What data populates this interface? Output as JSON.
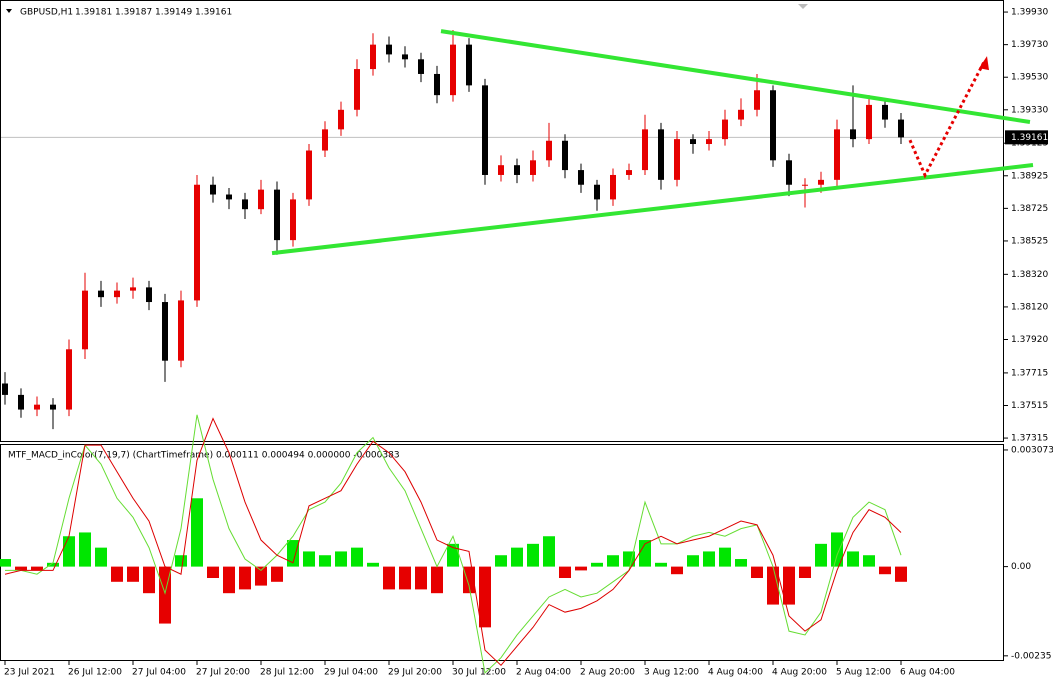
{
  "chart_data": [
    {
      "type": "candlestick",
      "symbol": "GBPUSD,H1",
      "quote": [
        1.39181,
        1.39187,
        1.39149,
        1.39161
      ],
      "last_price": 1.39161,
      "up_color": "#e60000",
      "down_color": "#000000",
      "categories": [
        "23 Jul 2021",
        null,
        null,
        null,
        "26 Jul 12:00",
        null,
        null,
        null,
        "27 Jul 04:00",
        null,
        null,
        null,
        "27 Jul 20:00",
        null,
        null,
        null,
        "28 Jul 12:00",
        null,
        null,
        null,
        "29 Jul 04:00",
        null,
        null,
        null,
        "29 Jul 20:00",
        null,
        null,
        null,
        "30 Jul 12:00",
        null,
        null,
        null,
        "2 Aug 04:00",
        null,
        null,
        null,
        "2 Aug 20:00",
        null,
        null,
        null,
        "3 Aug 12:00",
        null,
        null,
        null,
        "4 Aug 04:00",
        null,
        null,
        null,
        "4 Aug 20:00",
        null,
        null,
        null,
        "5 Aug 12:00",
        null,
        null,
        null,
        "6 Aug 04:00"
      ],
      "open": [
        1.3765,
        1.3758,
        1.3749,
        1.3752,
        1.3749,
        1.3786,
        1.3822,
        1.3818,
        1.3822,
        1.3824,
        1.3815,
        1.3779,
        1.3816,
        1.3887,
        1.3881,
        1.3878,
        1.3872,
        1.3884,
        1.3853,
        1.3878,
        1.3908,
        1.3921,
        1.3933,
        1.3958,
        1.3973,
        1.3967,
        1.3964,
        1.3955,
        1.3942,
        1.3973,
        1.3948,
        1.3893,
        1.3899,
        1.3893,
        1.3902,
        1.3914,
        1.3896,
        1.3887,
        1.3878,
        1.3893,
        1.3896,
        1.3921,
        1.389,
        1.3915,
        1.3912,
        1.3915,
        1.3927,
        1.3933,
        1.3945,
        1.3902,
        1.3887,
        1.3887,
        1.389,
        1.3921,
        1.3915,
        1.3936,
        1.3927
      ],
      "high": [
        1.3772,
        1.3762,
        1.3757,
        1.3756,
        1.3792,
        1.3833,
        1.3828,
        1.3827,
        1.383,
        1.3828,
        1.382,
        1.3822,
        1.3893,
        1.3892,
        1.3885,
        1.3882,
        1.389,
        1.3889,
        1.3882,
        1.3912,
        1.3926,
        1.3938,
        1.3964,
        1.398,
        1.3978,
        1.3972,
        1.3968,
        1.396,
        1.3982,
        1.3977,
        1.3952,
        1.3905,
        1.3903,
        1.3908,
        1.3925,
        1.3918,
        1.39,
        1.389,
        1.3897,
        1.39,
        1.393,
        1.3925,
        1.392,
        1.3918,
        1.392,
        1.3933,
        1.394,
        1.3955,
        1.3948,
        1.3906,
        1.3891,
        1.3895,
        1.3927,
        1.3948,
        1.3942,
        1.3939,
        1.3931
      ],
      "low": [
        1.3752,
        1.3744,
        1.3745,
        1.3737,
        1.3745,
        1.378,
        1.3812,
        1.3814,
        1.3817,
        1.381,
        1.3766,
        1.3775,
        1.3812,
        1.3876,
        1.3872,
        1.3866,
        1.3869,
        1.3844,
        1.3849,
        1.3874,
        1.3904,
        1.3917,
        1.3929,
        1.3954,
        1.3962,
        1.3959,
        1.395,
        1.3937,
        1.3938,
        1.3944,
        1.3887,
        1.3889,
        1.3888,
        1.3889,
        1.3898,
        1.3891,
        1.3882,
        1.3871,
        1.3874,
        1.389,
        1.3893,
        1.3884,
        1.3886,
        1.3906,
        1.3908,
        1.3911,
        1.3923,
        1.3929,
        1.3898,
        1.388,
        1.3873,
        1.3882,
        1.3885,
        1.391,
        1.3912,
        1.3922,
        1.3912
      ],
      "close": [
        1.3758,
        1.3749,
        1.3752,
        1.3749,
        1.3786,
        1.3822,
        1.3818,
        1.3822,
        1.3824,
        1.3815,
        1.3779,
        1.3816,
        1.3887,
        1.3881,
        1.3878,
        1.3872,
        1.3884,
        1.3853,
        1.3878,
        1.3908,
        1.3921,
        1.3933,
        1.3958,
        1.3973,
        1.3967,
        1.3964,
        1.3955,
        1.3942,
        1.3973,
        1.3948,
        1.3893,
        1.3899,
        1.3893,
        1.3902,
        1.3914,
        1.3896,
        1.3887,
        1.3878,
        1.3893,
        1.3896,
        1.3921,
        1.389,
        1.3915,
        1.3912,
        1.3915,
        1.3927,
        1.3933,
        1.3945,
        1.3902,
        1.3887,
        1.3887,
        1.389,
        1.3921,
        1.3915,
        1.3936,
        1.3927,
        1.39161
      ],
      "trendlines": [
        {
          "color": "#33e633",
          "x": [
            27.25,
            64.06
          ],
          "y": [
            1.39813,
            1.39255
          ]
        },
        {
          "color": "#33e633",
          "x": [
            16.69,
            64.25
          ],
          "y": [
            1.3845,
            1.38991
          ]
        }
      ],
      "projection": {
        "color": "#e60000",
        "x": [
          56.56,
          57.5,
          61.25
        ],
        "y": [
          1.39144,
          1.38929,
          1.39635
        ]
      },
      "ylim": [
        1.37297,
        1.40004
      ],
      "yticks": [
        {
          "value": 1.3993,
          "label": "1.39930"
        },
        {
          "value": 1.3973,
          "label": "1.39730"
        },
        {
          "value": 1.3953,
          "label": "1.39530"
        },
        {
          "value": 1.3933,
          "label": "1.39330"
        },
        1.39125,
        1.38925,
        1.38725,
        1.38525,
        {
          "value": 1.3832,
          "label": "1.38320"
        },
        {
          "value": 1.3812,
          "label": "1.38120"
        },
        {
          "value": 1.3792,
          "label": "1.37920"
        },
        1.37715,
        1.37515,
        1.37315
      ]
    },
    {
      "type": "macd",
      "title": "MTF_MACD_inColor(7,19,7) (ChartTimeframe) 0.000111 0.000494 0.000000 -0.000383",
      "up_color": "#00e600",
      "down_color": "#e60000",
      "histogram": [
        0.0002,
        -0.0001,
        -0.0001,
        0.0001,
        0.0008,
        0.0009,
        0.0005,
        -0.0004,
        -0.0004,
        -0.0007,
        -0.0015,
        0.0003,
        0.0018,
        -0.0003,
        -0.0007,
        -0.0006,
        -0.0005,
        -0.0004,
        0.0007,
        0.0004,
        0.0003,
        0.0004,
        0.0005,
        0.0001,
        -0.0006,
        -0.0006,
        -0.0006,
        -0.0007,
        0.0006,
        -0.0007,
        -0.0016,
        0.0003,
        0.0005,
        0.0006,
        0.0008,
        -0.0003,
        -0.0001,
        0.0001,
        0.0003,
        0.0004,
        0.0007,
        0.0001,
        -0.0002,
        0.0003,
        0.0004,
        0.0005,
        0.0002,
        -0.0003,
        -0.001,
        -0.001,
        -0.0003,
        0.0006,
        0.0009,
        0.0004,
        0.0003,
        -0.0002,
        -0.0004
      ],
      "series": [
        {
          "color": "#66dd33",
          "values": [
            -0.0001,
            -0.0001,
            -0.0002,
            0.0001,
            0.0018,
            0.0032,
            0.0027,
            0.0018,
            0.0013,
            0.0005,
            -0.0007,
            0.001,
            0.004,
            0.0023,
            0.001,
            0.0002,
            -0.0001,
            0.0003,
            0.0008,
            0.0015,
            0.0017,
            0.0022,
            0.003,
            0.0034,
            0.0026,
            0.002,
            0.001,
            0,
            0.0008,
            -0.0005,
            -0.0028,
            -0.0024,
            -0.0018,
            -0.0013,
            -0.0008,
            -0.0006,
            -0.0008,
            -0.0007,
            -0.0004,
            -0.0001,
            0.0017,
            0.0006,
            0.0006,
            0.0008,
            0.0009,
            0.0008,
            0.001,
            0.0011,
            0,
            -0.0017,
            -0.0018,
            -0.0012,
            0.0003,
            0.0013,
            0.0017,
            0.0015,
            0.0003
          ]
        },
        {
          "color": "#dd0000",
          "values": [
            -0.0002,
            -0.0001,
            -0.0001,
            -0.0001,
            0.0008,
            0.0032,
            0.0032,
            0.0025,
            0.0018,
            0.0012,
            0,
            -0.0002,
            0.0028,
            0.0039,
            0.003,
            0.0017,
            0.0007,
            0.0003,
            0.0001,
            0.0016,
            0.0018,
            0.002,
            0.0027,
            0.0033,
            0.003,
            0.0025,
            0.0017,
            0.0007,
            0.0005,
            0.0004,
            -0.0022,
            -0.0026,
            -0.0021,
            -0.0016,
            -0.001,
            -0.0012,
            -0.0011,
            -0.0009,
            -0.0006,
            -0.0001,
            0.0006,
            0.0008,
            0.0006,
            0.0007,
            0.0008,
            0.001,
            0.0012,
            0.0011,
            0.0003,
            -0.0013,
            -0.0017,
            -0.0014,
            -0.0001,
            0.0009,
            0.0015,
            0.0013,
            0.0009
          ]
        }
      ],
      "ylim": [
        -0.00246,
        0.00323
      ],
      "yticks": [
        0.003073,
        {
          "value": 0,
          "label": "0.00"
        },
        -0.00235
      ]
    }
  ]
}
